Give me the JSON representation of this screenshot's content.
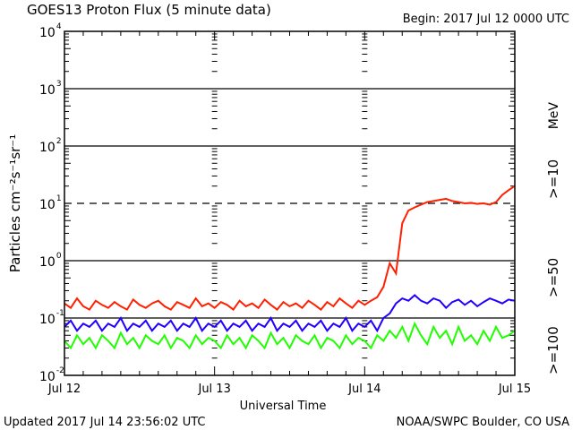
{
  "chart_data": {
    "type": "line",
    "title": "GOES13 Proton Flux (5 minute data)",
    "begin_label": "Begin: 2017 Jul 12 0000 UTC",
    "xlabel": "Universal Time",
    "ylabel": "Particles cm⁻²s⁻¹sr⁻¹",
    "x_unit": "hours since 2017 Jul 12 00:00 UTC",
    "xlim": [
      0,
      72
    ],
    "x_ticks": [
      {
        "v": 0,
        "label": "Jul 12"
      },
      {
        "v": 24,
        "label": "Jul 13"
      },
      {
        "v": 48,
        "label": "Jul 14"
      },
      {
        "v": 72,
        "label": "Jul 15"
      }
    ],
    "yscale": "log",
    "ylim": [
      0.01,
      10000
    ],
    "y_ticks": [
      {
        "exp": "-2"
      },
      {
        "exp": "-1"
      },
      {
        "exp": "0"
      },
      {
        "exp": "1"
      },
      {
        "exp": "2"
      },
      {
        "exp": "3"
      },
      {
        "exp": "4"
      }
    ],
    "grid": {
      "solid": [
        0.1,
        1,
        100,
        1000
      ],
      "dashed": [
        10
      ]
    },
    "unit_label": "MeV",
    "series": [
      {
        "name": ">=10",
        "color": "#ff2000",
        "values": [
          0.18,
          0.15,
          0.22,
          0.16,
          0.14,
          0.2,
          0.17,
          0.15,
          0.19,
          0.16,
          0.14,
          0.21,
          0.17,
          0.15,
          0.18,
          0.2,
          0.16,
          0.14,
          0.19,
          0.17,
          0.15,
          0.22,
          0.16,
          0.18,
          0.15,
          0.19,
          0.17,
          0.14,
          0.2,
          0.16,
          0.18,
          0.15,
          0.21,
          0.17,
          0.14,
          0.19,
          0.16,
          0.18,
          0.15,
          0.2,
          0.17,
          0.14,
          0.19,
          0.16,
          0.22,
          0.18,
          0.15,
          0.2,
          0.17,
          0.2,
          0.23,
          0.35,
          0.9,
          0.6,
          4.5,
          7.5,
          8.5,
          9.5,
          10.5,
          11,
          11.5,
          12,
          11,
          10.5,
          10,
          10.2,
          9.8,
          10,
          9.5,
          10.5,
          14,
          17,
          20
        ]
      },
      {
        "name": ">=50",
        "color": "#2000ff",
        "values": [
          0.07,
          0.09,
          0.06,
          0.08,
          0.07,
          0.09,
          0.06,
          0.08,
          0.07,
          0.1,
          0.06,
          0.08,
          0.07,
          0.09,
          0.06,
          0.08,
          0.07,
          0.09,
          0.06,
          0.08,
          0.07,
          0.1,
          0.06,
          0.08,
          0.07,
          0.09,
          0.06,
          0.08,
          0.07,
          0.09,
          0.06,
          0.08,
          0.07,
          0.1,
          0.06,
          0.08,
          0.07,
          0.09,
          0.06,
          0.08,
          0.07,
          0.09,
          0.06,
          0.08,
          0.07,
          0.1,
          0.06,
          0.08,
          0.07,
          0.09,
          0.06,
          0.1,
          0.12,
          0.18,
          0.22,
          0.2,
          0.25,
          0.2,
          0.18,
          0.22,
          0.2,
          0.15,
          0.19,
          0.21,
          0.17,
          0.2,
          0.16,
          0.19,
          0.22,
          0.2,
          0.18,
          0.21,
          0.2
        ]
      },
      {
        "name": ">=100",
        "color": "#20ff00",
        "values": [
          0.04,
          0.03,
          0.05,
          0.035,
          0.045,
          0.03,
          0.05,
          0.04,
          0.03,
          0.055,
          0.035,
          0.045,
          0.03,
          0.05,
          0.04,
          0.035,
          0.05,
          0.03,
          0.045,
          0.04,
          0.03,
          0.05,
          0.035,
          0.045,
          0.04,
          0.03,
          0.05,
          0.035,
          0.045,
          0.03,
          0.05,
          0.04,
          0.03,
          0.055,
          0.035,
          0.045,
          0.03,
          0.05,
          0.04,
          0.035,
          0.05,
          0.03,
          0.045,
          0.04,
          0.03,
          0.05,
          0.035,
          0.045,
          0.04,
          0.03,
          0.05,
          0.04,
          0.06,
          0.045,
          0.07,
          0.04,
          0.08,
          0.05,
          0.035,
          0.07,
          0.045,
          0.06,
          0.035,
          0.07,
          0.04,
          0.05,
          0.035,
          0.06,
          0.04,
          0.07,
          0.045,
          0.05,
          0.06
        ]
      }
    ]
  },
  "footer": {
    "updated": "Updated 2017 Jul 14 23:56:02 UTC",
    "credit": "NOAA/SWPC Boulder, CO USA"
  }
}
